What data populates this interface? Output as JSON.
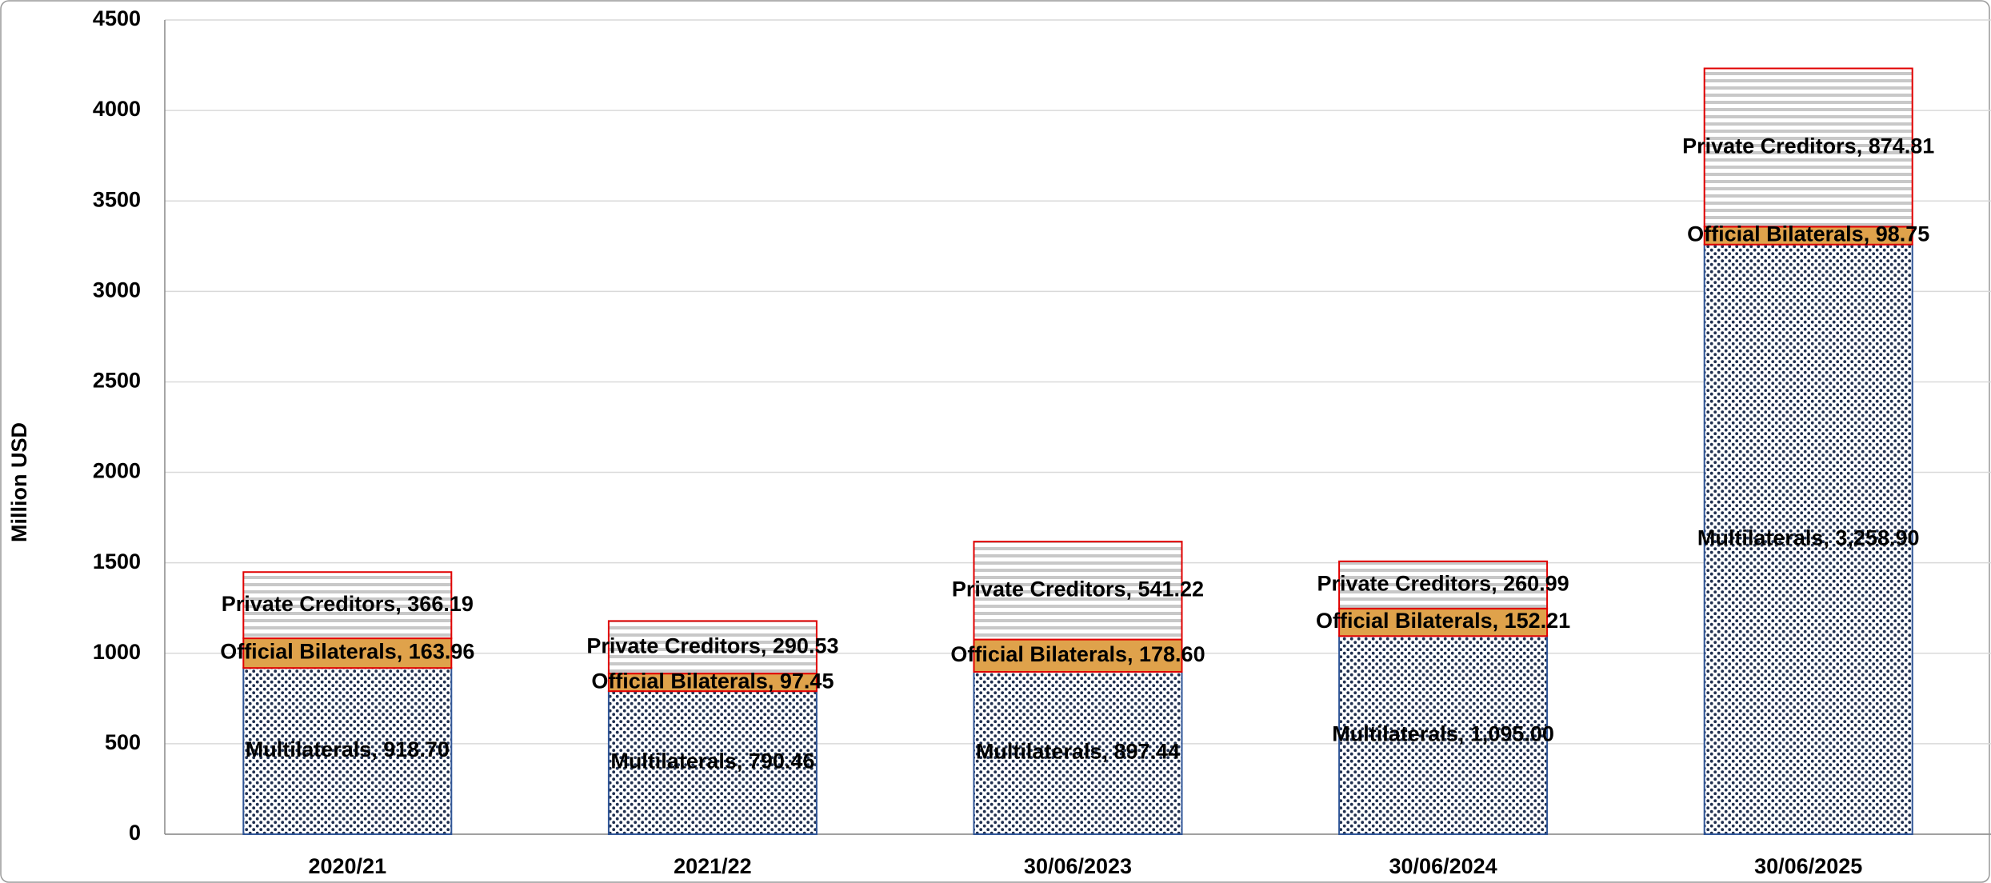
{
  "chart_data": {
    "type": "stacked_bar",
    "y_label": "Million USD",
    "categories": [
      "2020/21",
      "2021/22",
      "30/06/2023",
      "30/06/2024",
      "30/06/2025"
    ],
    "series": [
      {
        "name": "Multilaterals",
        "color": "#1f2f4f",
        "values": [
          918.7,
          790.46,
          897.44,
          1095.0,
          3258.9
        ],
        "value_labels": [
          "Multilaterals,  918.70",
          "Multilaterals,  790.46",
          "Multilaterals,  897.44",
          "Multilaterals,  1,095.00",
          "Multilaterals,  3,258.90"
        ]
      },
      {
        "name": "Official Bilaterals",
        "color": "#dfa24b",
        "values": [
          163.96,
          97.45,
          178.6,
          152.21,
          98.75
        ],
        "value_labels": [
          "Official Bilaterals,  163.96",
          "Official Bilaterals,  97.45",
          "Official Bilaterals,  178.60",
          "Official Bilaterals,  152.21",
          "Official Bilaterals,  98.75"
        ]
      },
      {
        "name": "Private Creditors",
        "color": "#c8c8c8",
        "values": [
          366.19,
          290.53,
          541.22,
          260.99,
          874.81
        ],
        "value_labels": [
          "Private Creditors,  366.19",
          "Private Creditors,  290.53",
          "Private Creditors,  541.22",
          "Private Creditors,  260.99",
          "Private Creditors,  874.81"
        ]
      }
    ],
    "ylim": [
      0,
      4500
    ],
    "yticks": [
      0,
      500,
      1000,
      1500,
      2000,
      2500,
      3000,
      3500,
      4000,
      4500
    ],
    "grid": true
  }
}
